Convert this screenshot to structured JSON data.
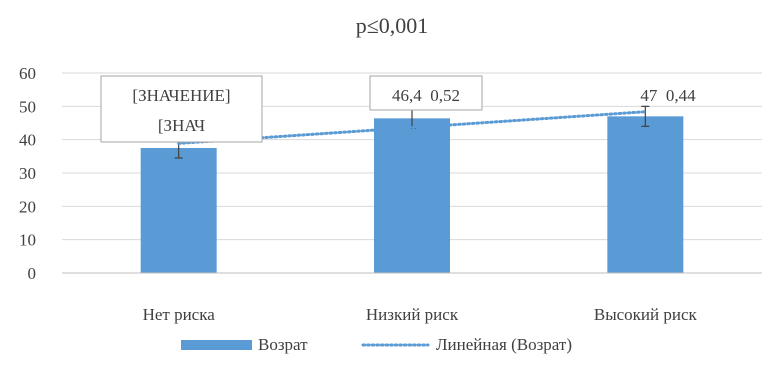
{
  "chart_data": {
    "type": "bar",
    "title": "p≤0,001",
    "xlabel": "",
    "ylabel": "",
    "ylim": [
      0,
      60
    ],
    "yticks": [
      0,
      10,
      20,
      30,
      40,
      50,
      60
    ],
    "categories": [
      "Нет риска",
      "Низкий риск",
      "Высокий риск"
    ],
    "series": [
      {
        "name": "Возрат",
        "values": [
          37.5,
          46.4,
          47
        ],
        "error": [
          3,
          3,
          3
        ],
        "color": "#5b9bd5"
      }
    ],
    "trendline": {
      "name": "Линейная (Возрат)",
      "type": "linear",
      "style": "dotted",
      "color": "#5b9bd5"
    },
    "data_labels": [
      {
        "lines": [
          "[ЗНАЧЕНИЕ]",
          "[ЗНАЧ"
        ],
        "boxed": true
      },
      {
        "lines": [
          "46,4  0,52"
        ],
        "boxed": true
      },
      {
        "lines": [
          "47  0,44"
        ],
        "boxed": false
      }
    ],
    "legend_position": "bottom",
    "grid": true
  }
}
